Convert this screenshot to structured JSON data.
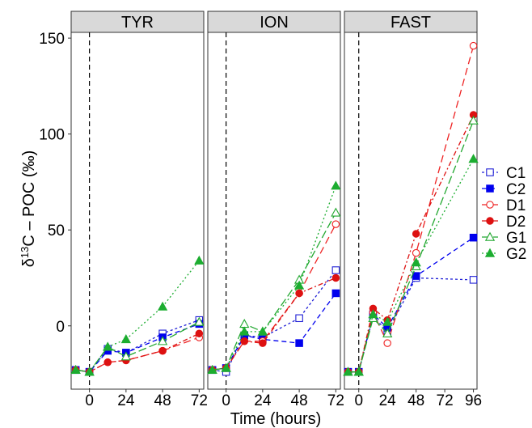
{
  "chart_data": {
    "type": "line",
    "facets": [
      "TYR",
      "ION",
      "FAST"
    ],
    "xlabel": "Time (hours)",
    "ylabel_prefix": "δ",
    "ylabel_superscript": "13",
    "ylabel_suffix": "C – POC (‰)",
    "ylim": [
      -33,
      153
    ],
    "yticks": [
      0,
      50,
      100,
      150
    ],
    "x_ticks": [
      [
        0,
        24,
        48,
        72
      ],
      [
        0,
        24,
        48,
        72
      ],
      [
        0,
        24,
        48,
        72,
        96
      ]
    ],
    "x_domains": [
      [
        -12,
        75
      ],
      [
        -12,
        75
      ],
      [
        -12,
        99
      ]
    ],
    "vline_x": 0,
    "grid": false,
    "legend_position": "right",
    "series": [
      {
        "name": "C1",
        "color": "#1f1fd6",
        "marker": "open-square",
        "dash": "3,3",
        "panels": [
          [
            [
              -9,
              -23
            ],
            [
              0,
              -24
            ],
            [
              12,
              -12
            ],
            [
              24,
              -14
            ],
            [
              48,
              -4
            ],
            [
              72,
              3
            ]
          ],
          [
            [
              -9,
              -23
            ],
            [
              0,
              -24
            ],
            [
              12,
              -5
            ],
            [
              24,
              -6
            ],
            [
              48,
              4
            ],
            [
              72,
              29
            ]
          ],
          [
            [
              -9,
              -24
            ],
            [
              0,
              -24
            ],
            [
              12,
              5
            ],
            [
              24,
              -3
            ],
            [
              48,
              25
            ],
            [
              96,
              24
            ]
          ]
        ]
      },
      {
        "name": "C2",
        "color": "#0000ee",
        "marker": "square",
        "dash": "6,4",
        "panels": [
          [
            [
              -9,
              -23
            ],
            [
              0,
              -24
            ],
            [
              12,
              -13
            ],
            [
              24,
              -14
            ],
            [
              48,
              -6
            ],
            [
              72,
              1
            ]
          ],
          [
            [
              -9,
              -23
            ],
            [
              0,
              -22
            ],
            [
              12,
              -5
            ],
            [
              24,
              -7
            ],
            [
              48,
              -9
            ],
            [
              72,
              17
            ]
          ],
          [
            [
              -9,
              -24
            ],
            [
              0,
              -24
            ],
            [
              12,
              6
            ],
            [
              24,
              -1
            ],
            [
              48,
              26
            ],
            [
              96,
              46
            ]
          ]
        ]
      },
      {
        "name": "D1",
        "color": "#ee2222",
        "marker": "open-circle",
        "dash": "9,5",
        "panels": [
          [
            [
              -9,
              -23
            ],
            [
              0,
              -24
            ],
            [
              12,
              -19
            ],
            [
              24,
              -18
            ],
            [
              48,
              -13
            ],
            [
              72,
              -6
            ]
          ],
          [
            [
              -9,
              -23
            ],
            [
              0,
              -22
            ],
            [
              12,
              -8
            ],
            [
              24,
              -8
            ],
            [
              48,
              17
            ],
            [
              72,
              53
            ]
          ],
          [
            [
              -9,
              -24
            ],
            [
              0,
              -24
            ],
            [
              12,
              7
            ],
            [
              24,
              -9
            ],
            [
              48,
              38
            ],
            [
              96,
              146
            ]
          ]
        ]
      },
      {
        "name": "D2",
        "color": "#dd1111",
        "marker": "circle",
        "dash": "6,3,2,3",
        "panels": [
          [
            [
              -9,
              -23
            ],
            [
              0,
              -24
            ],
            [
              12,
              -19
            ],
            [
              24,
              -18
            ],
            [
              48,
              -13
            ],
            [
              72,
              -4
            ]
          ],
          [
            [
              -9,
              -23
            ],
            [
              0,
              -22
            ],
            [
              12,
              -8
            ],
            [
              24,
              -9
            ],
            [
              48,
              17
            ],
            [
              72,
              25
            ]
          ],
          [
            [
              -9,
              -24
            ],
            [
              0,
              -24
            ],
            [
              12,
              9
            ],
            [
              24,
              3
            ],
            [
              48,
              48
            ],
            [
              96,
              110
            ]
          ]
        ]
      },
      {
        "name": "G1",
        "color": "#22a830",
        "marker": "open-triangle",
        "dash": "10,4",
        "panels": [
          [
            [
              -9,
              -23
            ],
            [
              0,
              -24
            ],
            [
              12,
              -11
            ],
            [
              24,
              -16
            ],
            [
              48,
              -8
            ],
            [
              72,
              2
            ]
          ],
          [
            [
              -9,
              -23
            ],
            [
              0,
              -22
            ],
            [
              12,
              1
            ],
            [
              24,
              -3
            ],
            [
              48,
              24
            ],
            [
              72,
              59
            ]
          ],
          [
            [
              -9,
              -24
            ],
            [
              0,
              -24
            ],
            [
              12,
              4
            ],
            [
              24,
              -4
            ],
            [
              48,
              31
            ],
            [
              96,
              107
            ]
          ]
        ]
      },
      {
        "name": "G2",
        "color": "#1cad30",
        "marker": "triangle",
        "dash": "2,3",
        "panels": [
          [
            [
              -9,
              -23
            ],
            [
              0,
              -24
            ],
            [
              12,
              -11
            ],
            [
              24,
              -7
            ],
            [
              48,
              10
            ],
            [
              72,
              34
            ]
          ],
          [
            [
              -9,
              -23
            ],
            [
              0,
              -22
            ],
            [
              12,
              -3
            ],
            [
              24,
              -3
            ],
            [
              48,
              21
            ],
            [
              72,
              73
            ]
          ],
          [
            [
              -9,
              -24
            ],
            [
              0,
              -24
            ],
            [
              12,
              6
            ],
            [
              24,
              2
            ],
            [
              48,
              33
            ],
            [
              96,
              87
            ]
          ]
        ]
      }
    ]
  }
}
